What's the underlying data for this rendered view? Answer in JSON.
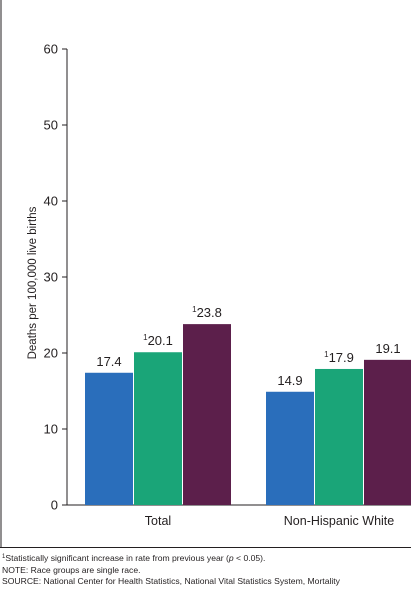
{
  "chart_data": {
    "type": "bar",
    "ylabel": "Deaths per 100,000 live births",
    "ylim": [
      0,
      60
    ],
    "yticks": [
      0,
      10,
      20,
      30,
      40,
      50,
      60
    ],
    "grid": false,
    "categories": [
      "Total",
      "Non-Hispanic White"
    ],
    "series": [
      {
        "color": "#2a6ebb",
        "values": [
          17.4,
          14.9
        ],
        "labels": [
          "17.4",
          "14.9"
        ],
        "superscripts": [
          "",
          ""
        ]
      },
      {
        "color": "#1aa578",
        "values": [
          20.1,
          17.9
        ],
        "labels": [
          "20.1",
          "17.9"
        ],
        "superscripts": [
          "1",
          "1"
        ]
      },
      {
        "color": "#5c1f4b",
        "values": [
          23.8,
          19.1
        ],
        "labels": [
          "23.8",
          "19.1"
        ],
        "superscripts": [
          "1",
          ""
        ]
      }
    ]
  },
  "footnotes": {
    "significance_marker": "1",
    "significance_text_before": "Statistically significant increase in rate from previous year (",
    "significance_p": "p",
    "significance_text_after": " < 0.05).",
    "note": "NOTE: Race groups are single race.",
    "source": "SOURCE: National Center for Health Statistics, National Vital Statistics System, Mortality"
  }
}
